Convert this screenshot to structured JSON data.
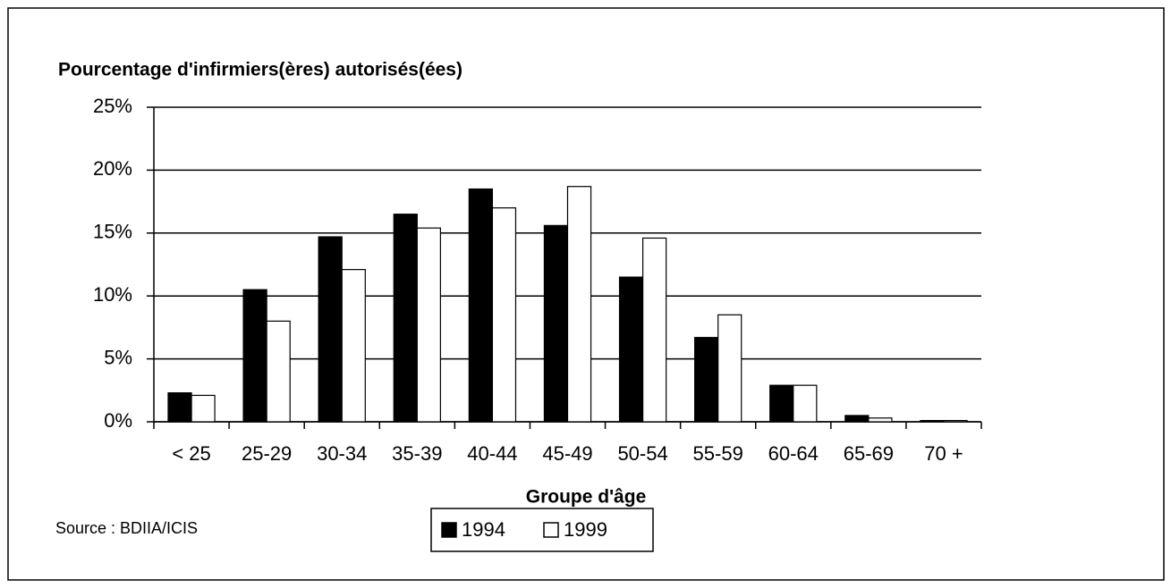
{
  "chart_data": {
    "type": "bar",
    "y_axis_label": "Pourcentage d'infirmiers(ères) autorisés(ées)",
    "x_axis_label": "Groupe d'âge",
    "source": "Source : BDIIA/ICIS",
    "categories": [
      "< 25",
      "25-29",
      "30-34",
      "35-39",
      "40-44",
      "45-49",
      "50-54",
      "55-59",
      "60-64",
      "65-69",
      "70 +"
    ],
    "series": [
      {
        "name": "1994",
        "color": "#000000",
        "values": [
          2.3,
          10.5,
          14.7,
          16.5,
          18.5,
          15.6,
          11.5,
          6.7,
          2.9,
          0.5,
          0.1
        ]
      },
      {
        "name": "1999",
        "color": "#ffffff",
        "values": [
          2.1,
          8.0,
          12.1,
          15.4,
          17.0,
          18.7,
          14.6,
          8.5,
          2.9,
          0.3,
          0.1
        ]
      }
    ],
    "ylim": [
      0,
      25
    ],
    "yticks": [
      {
        "value": 0,
        "label": "0%"
      },
      {
        "value": 5,
        "label": "5%"
      },
      {
        "value": 10,
        "label": "10%"
      },
      {
        "value": 15,
        "label": "15%"
      },
      {
        "value": 20,
        "label": "20%"
      },
      {
        "value": 25,
        "label": "25%"
      }
    ],
    "grid": true,
    "legend": "bottom"
  }
}
